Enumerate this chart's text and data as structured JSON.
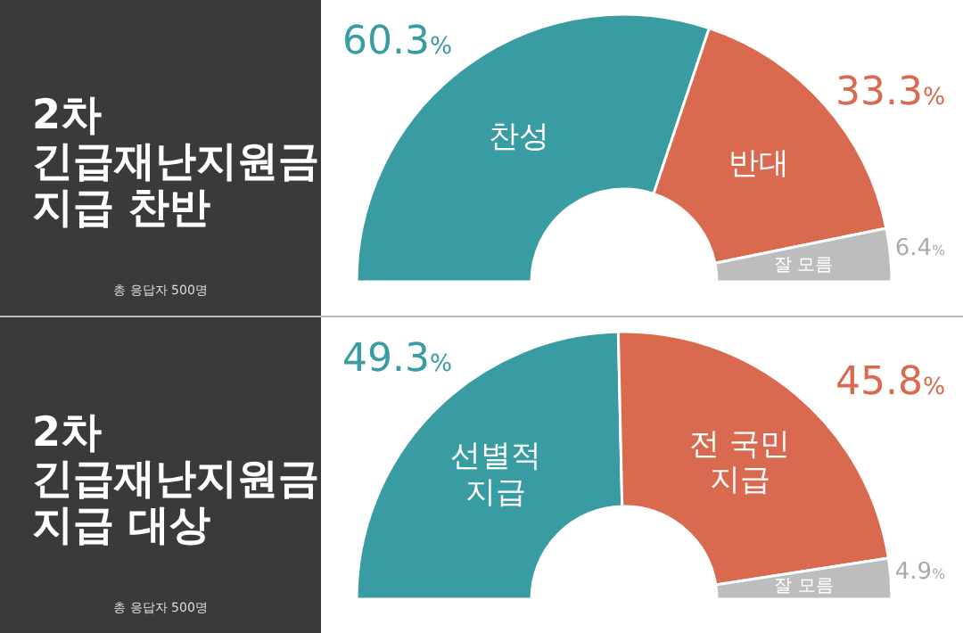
{
  "chart_data": [
    {
      "type": "donut",
      "title": "2차 긴급재난지원금 지급 찬반",
      "annotations": [
        "총 응답자 500명"
      ],
      "categories": [
        "찬성",
        "반대",
        "잘 모름"
      ],
      "values": [
        60.3,
        33.3,
        6.4
      ],
      "value_labels": [
        "60.3%",
        "33.3%",
        "6.4%"
      ],
      "colors": [
        "#3a9ca3",
        "#d9694f",
        "#bdbdbd"
      ]
    },
    {
      "type": "donut",
      "title": "2차 긴급재난지원금 지급 대상",
      "annotations": [
        "총 응답자 500명"
      ],
      "categories": [
        "선별적\n지급",
        "전 국민\n지급",
        "잘 모름"
      ],
      "values": [
        49.3,
        45.8,
        4.9
      ],
      "value_labels": [
        "49.3%",
        "45.8%",
        "4.9%"
      ],
      "colors": [
        "#3a9ca3",
        "#d9694f",
        "#bdbdbd"
      ]
    }
  ]
}
